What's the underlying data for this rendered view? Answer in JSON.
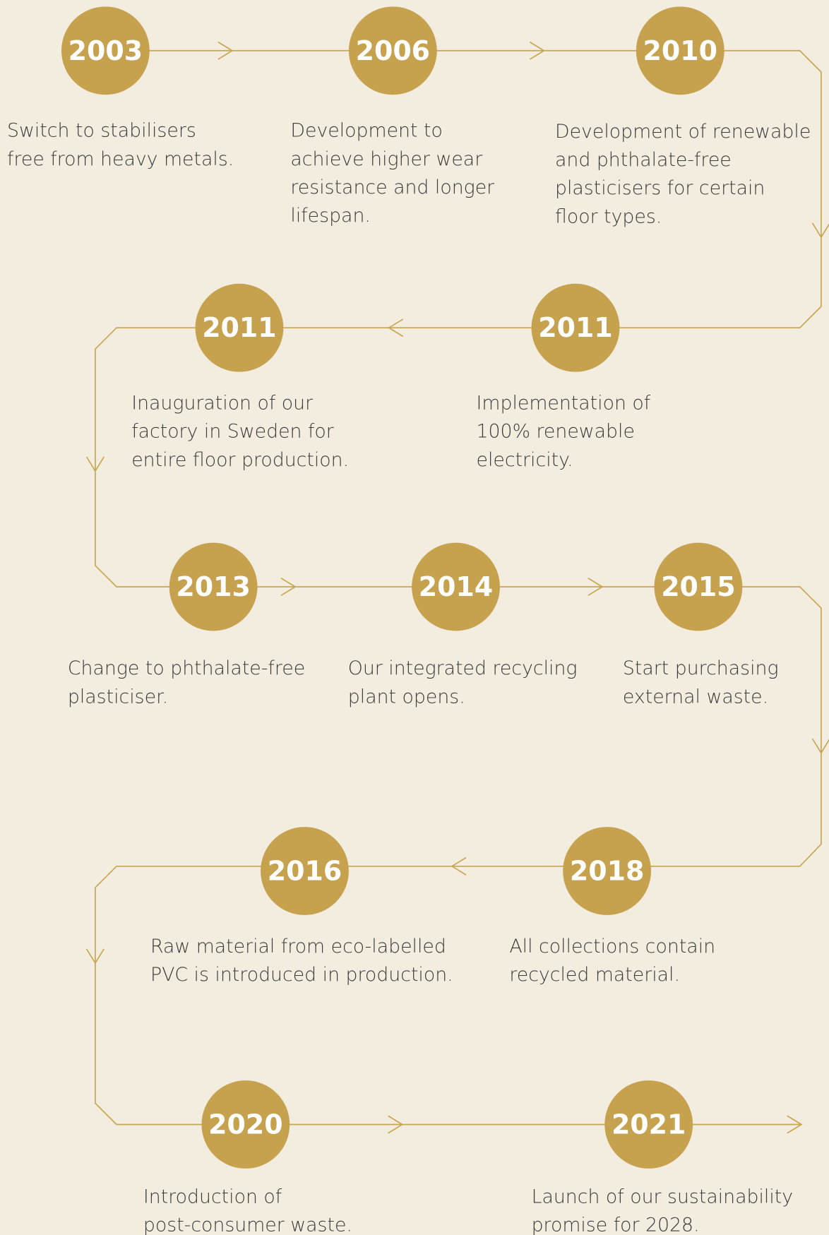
{
  "milestones": [
    {
      "year": "2003",
      "lines": [
        "Switch to stabilisers",
        "free from heavy metals."
      ]
    },
    {
      "year": "2006",
      "lines": [
        "Development to",
        "achieve higher wear",
        "resistance and longer",
        "lifespan."
      ]
    },
    {
      "year": "2010",
      "lines": [
        "Development of renewable",
        "and phthalate-free",
        "plasticisers for certain",
        "floor types."
      ]
    },
    {
      "year": "2011",
      "lines": [
        "Implementation of",
        "100% renewable",
        "electricity."
      ]
    },
    {
      "year": "2011",
      "lines": [
        "Inauguration of our",
        "factory in Sweden for",
        "entire floor production."
      ]
    },
    {
      "year": "2013",
      "lines": [
        "Change to phthalate-free",
        "plasticiser."
      ]
    },
    {
      "year": "2014",
      "lines": [
        "Our integrated recycling",
        "plant opens."
      ]
    },
    {
      "year": "2015",
      "lines": [
        "Start purchasing",
        "external waste."
      ]
    },
    {
      "year": "2018",
      "lines": [
        "All collections contain",
        "recycled material."
      ]
    },
    {
      "year": "2016",
      "lines": [
        "Raw material from eco-labelled",
        "PVC is introduced in production."
      ]
    },
    {
      "year": "2020",
      "lines": [
        "Introduction of",
        "post-consumer waste."
      ]
    },
    {
      "year": "2021",
      "lines": [
        "Launch of our sustainability",
        "promise for 2028."
      ]
    }
  ]
}
